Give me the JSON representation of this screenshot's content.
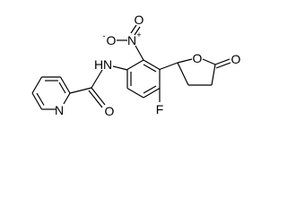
{
  "atoms": {
    "pyridine_n": "N",
    "amide_o": "O",
    "amide_n": "N",
    "amide_h": "H",
    "nitro_n": "N",
    "nitro_n_charge": "+",
    "nitro_o_single": "O",
    "nitro_o_charge": "-",
    "nitro_o_double": "O",
    "fluorine": "F",
    "lactone_ring_o": "O",
    "lactone_carbonyl_o": "O"
  }
}
